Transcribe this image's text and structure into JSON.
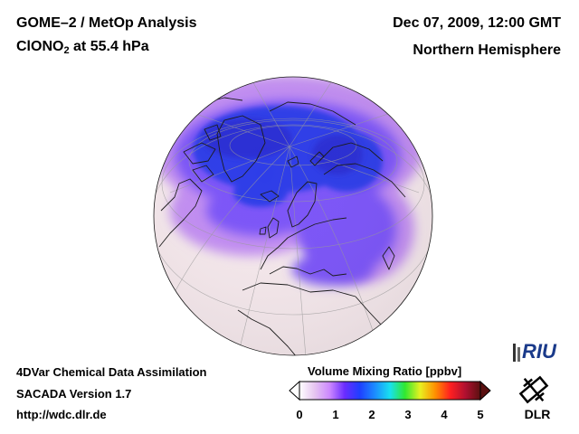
{
  "header": {
    "title_line1": "GOME–2 / MetOp Analysis",
    "species": "ClONO",
    "species_subscript": "2",
    "pressure": " at 55.4 hPa",
    "datetime": "Dec 07, 2009, 12:00 GMT",
    "hemisphere": "Northern Hemisphere"
  },
  "footer": {
    "line1": "4DVar Chemical Data Assimilation",
    "line2": "SACADA Version 1.7",
    "line3": "http://wdc.dlr.de"
  },
  "colorbar": {
    "title": "Volume Mixing Ratio [ppbv]",
    "ticks": [
      "0",
      "1",
      "2",
      "3",
      "4",
      "5"
    ],
    "min": 0,
    "max": 5,
    "colors": [
      "#ffffff",
      "#e6c6f0",
      "#cc88ff",
      "#6a2cff",
      "#1f3fff",
      "#1c8cff",
      "#18e0f0",
      "#30e830",
      "#e8f020",
      "#ff9000",
      "#ff2020",
      "#b01030",
      "#5a1010"
    ]
  },
  "logos": {
    "riu": "RIU",
    "dlr": "DLR"
  },
  "map": {
    "projection": "orthographic",
    "view": "Northern Hemisphere",
    "variable": "ClONO2 volume mixing ratio",
    "colors": {
      "background": "#f5e8ec",
      "low_high": "#c28ef2",
      "mid": "#7b55f8",
      "vortex": "#2e3de8",
      "core": "#2b2ed4",
      "coast": "#1a1a1a",
      "grid": "#9a9a9a"
    }
  }
}
